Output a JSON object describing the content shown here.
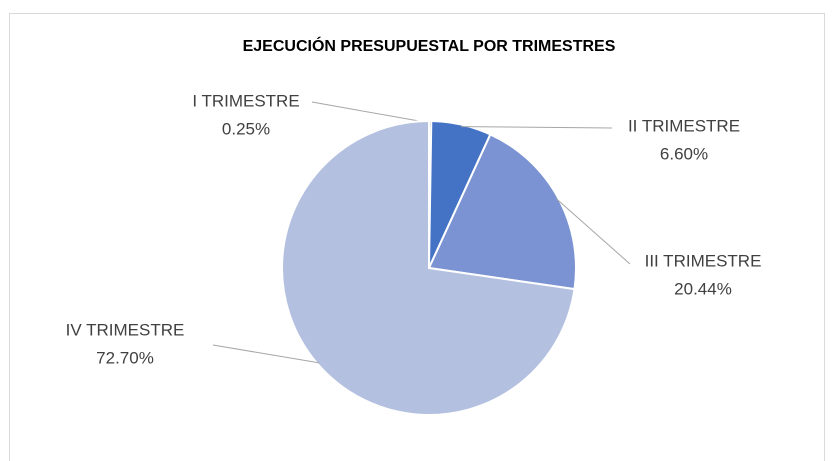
{
  "chart_data": {
    "type": "pie",
    "title": "EJECUCIÓN PRESUPUESTAL POR TRIMESTRES",
    "categories": [
      "I TRIMESTRE",
      "II TRIMESTRE",
      "III TRIMESTRE",
      "IV TRIMESTRE"
    ],
    "values": [
      0.25,
      6.6,
      20.44,
      72.7
    ],
    "value_labels": [
      "0.25%",
      "6.60%",
      "20.44%",
      "72.70%"
    ],
    "colors": [
      "#203864",
      "#4472c4",
      "#7b93d2",
      "#b4c0e0"
    ]
  }
}
